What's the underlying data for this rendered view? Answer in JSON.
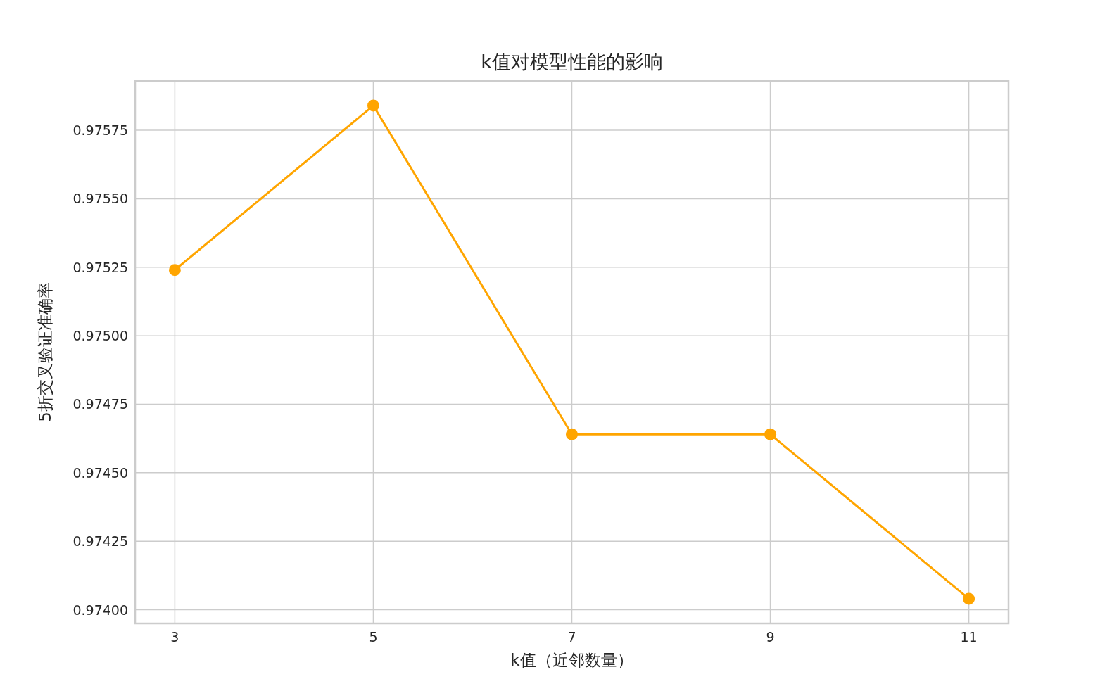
{
  "chart_data": {
    "type": "line",
    "title": "k值对模型性能的影响",
    "xlabel": "k值（近邻数量）",
    "ylabel": "5折交叉验证准确率",
    "x": [
      3,
      5,
      7,
      9,
      11
    ],
    "series": [
      {
        "color": "#ffa500",
        "values": [
          0.97524,
          0.97584,
          0.97464,
          0.97464,
          0.97404
        ]
      }
    ],
    "xlim": [
      2.6,
      11.4
    ],
    "ylim": [
      0.97395,
      0.97593
    ],
    "xticks": [
      3,
      5,
      7,
      9,
      11
    ],
    "yticks": [
      {
        "value": 0.974,
        "label": "0.97400"
      },
      {
        "value": 0.97425,
        "label": "0.97425"
      },
      {
        "value": 0.9745,
        "label": "0.97450"
      },
      {
        "value": 0.97475,
        "label": "0.97475"
      },
      {
        "value": 0.975,
        "label": "0.97500"
      },
      {
        "value": 0.97525,
        "label": "0.97525"
      },
      {
        "value": 0.9755,
        "label": "0.97550"
      },
      {
        "value": 0.97575,
        "label": "0.97575"
      }
    ],
    "grid": true,
    "marker": "circle",
    "line_style": "solid"
  }
}
